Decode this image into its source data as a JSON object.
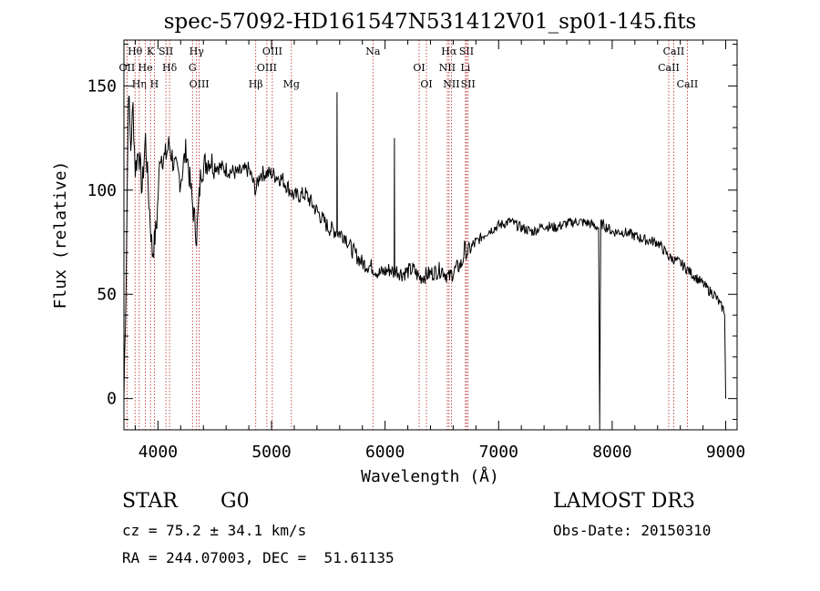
{
  "chart_data": {
    "type": "line",
    "title": "spec-57092-HD161547N531412V01_sp01-145.fits",
    "xlabel": "Wavelength (Å)",
    "ylabel": "Flux (relative)",
    "xlim": [
      3700,
      9100
    ],
    "ylim": [
      -15,
      172
    ],
    "xticks": [
      4000,
      5000,
      6000,
      7000,
      8000,
      9000
    ],
    "yticks": [
      0,
      50,
      100,
      150
    ],
    "grid": false,
    "series": [
      {
        "color": "#000000",
        "x": [
          3700,
          3720,
          3740,
          3760,
          3780,
          3800,
          3830,
          3860,
          3890,
          3920,
          3950,
          3968,
          3990,
          4020,
          4060,
          4100,
          4150,
          4200,
          4250,
          4300,
          4340,
          4380,
          4450,
          4500,
          4600,
          4700,
          4800,
          4861,
          4900,
          5000,
          5100,
          5200,
          5300,
          5400,
          5500,
          5575,
          5577,
          5580,
          5650,
          5700,
          5800,
          5890,
          5950,
          6050,
          6080,
          6082,
          6085,
          6150,
          6250,
          6300,
          6400,
          6500,
          6563,
          6620,
          6680,
          6700,
          6720,
          6800,
          6900,
          7000,
          7100,
          7200,
          7300,
          7400,
          7500,
          7600,
          7700,
          7800,
          7880,
          7890,
          7895,
          7900,
          7960,
          8000,
          8100,
          8200,
          8300,
          8400,
          8500,
          8600,
          8700,
          8800,
          8850,
          8900,
          8950,
          8990,
          9000
        ],
        "y": [
          0,
          60,
          150,
          120,
          140,
          110,
          120,
          100,
          125,
          95,
          70,
          75,
          85,
          118,
          115,
          122,
          110,
          105,
          120,
          95,
          78,
          110,
          115,
          112,
          110,
          108,
          110,
          100,
          108,
          108,
          105,
          97,
          98,
          90,
          82,
          80,
          147,
          80,
          78,
          72,
          65,
          63,
          60,
          62,
          60,
          125,
          62,
          60,
          62,
          58,
          60,
          62,
          58,
          62,
          65,
          72,
          70,
          75,
          80,
          83,
          85,
          82,
          80,
          83,
          82,
          84,
          85,
          84,
          82,
          -15,
          40,
          84,
          82,
          80,
          80,
          78,
          76,
          75,
          68,
          65,
          60,
          55,
          52,
          50,
          45,
          42,
          0
        ]
      }
    ],
    "lines": [
      {
        "label": "Hθ",
        "x": 3798
      },
      {
        "label": "OII",
        "x": 3727
      },
      {
        "label": "Hη",
        "x": 3835
      },
      {
        "label": "K",
        "x": 3934
      },
      {
        "label": "He",
        "x": 3889
      },
      {
        "label": "H",
        "x": 3968
      },
      {
        "label": "SII",
        "x": 4070
      },
      {
        "label": "Hδ",
        "x": 4102
      },
      {
        "label": "OIII",
        "x": 4363
      },
      {
        "label": "Hγ",
        "x": 4340
      },
      {
        "label": "G",
        "x": 4304
      },
      {
        "label": "Hβ",
        "x": 4861
      },
      {
        "label": "OIII",
        "x": 5007
      },
      {
        "label": "OIII",
        "x": 4959
      },
      {
        "label": "Mg",
        "x": 5175
      },
      {
        "label": "Na",
        "x": 5893
      },
      {
        "label": "OI",
        "x": 6300
      },
      {
        "label": "OI",
        "x": 6364
      },
      {
        "label": "Hα",
        "x": 6563
      },
      {
        "label": "NII",
        "x": 6548
      },
      {
        "label": "NII",
        "x": 6584
      },
      {
        "label": "SII",
        "x": 6717
      },
      {
        "label": "Li",
        "x": 6708
      },
      {
        "label": "SII",
        "x": 6731
      },
      {
        "label": "CaII",
        "x": 8542
      },
      {
        "label": "CaII",
        "x": 8498
      },
      {
        "label": "CaII",
        "x": 8662
      }
    ]
  },
  "info": {
    "object_type": "STAR",
    "subclass": "G0",
    "survey": "LAMOST DR3",
    "redshift": "cz = 75.2 ± 34.1 km/s",
    "obs_date": "Obs-Date: 20150310",
    "coords": "RA = 244.07003, DEC =  51.61135"
  }
}
